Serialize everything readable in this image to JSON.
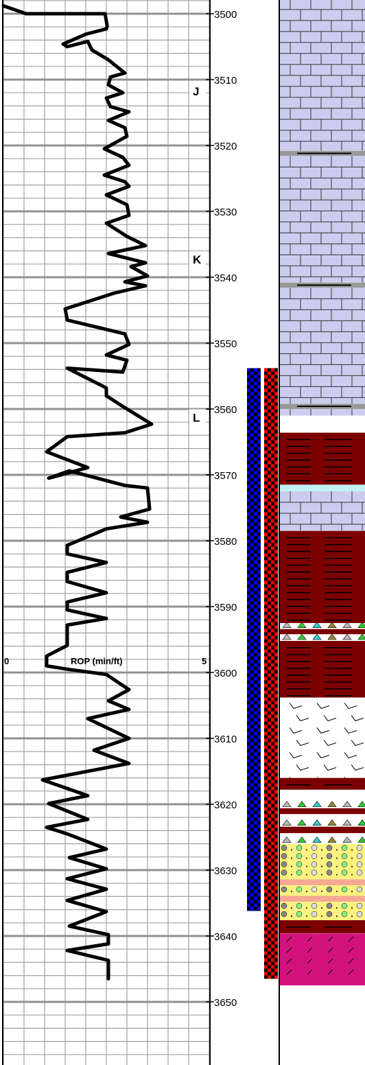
{
  "chart_data": {
    "type": "line",
    "series": [
      {
        "name": "ROP (min/ft)",
        "x": [
          0,
          0.55,
          2.47,
          2.52,
          2.5,
          2.0,
          1.45,
          1.55,
          2.05,
          2.15,
          2.55,
          2.95,
          2.6,
          2.55,
          2.9,
          2.5,
          2.6,
          3.05,
          2.55,
          2.95,
          3.0,
          2.45,
          2.9,
          3.05,
          2.45,
          2.95,
          3.05,
          2.5,
          3.0,
          3.05,
          2.5,
          3.0,
          3.45,
          2.55,
          3.45,
          3.1,
          3.5,
          2.95,
          3.45,
          2.7,
          1.5,
          1.55,
          2.95,
          3.05,
          2.5,
          3.0,
          2.9,
          1.55,
          2.5,
          2.5,
          2.95,
          3.6,
          2.95,
          1.55,
          1.05,
          2.05,
          1.1,
          1.6,
          2.95,
          3.5,
          3.55,
          2.85,
          3.5,
          2.5,
          1.55,
          1.55,
          2.5,
          1.55,
          1.55,
          2.5,
          1.55,
          1.55,
          2.5,
          1.55,
          1.55,
          1.05,
          1.05,
          1.55,
          2.5,
          3.05,
          2.55,
          3.05,
          2.05,
          3.05,
          2.2,
          3.05,
          0.95,
          2.05,
          1.1,
          2.05,
          1.05,
          1.55,
          2.5,
          1.6,
          2.5,
          1.55,
          2.5,
          1.55,
          2.5,
          1.6,
          2.55,
          2.55,
          1.55,
          2.55,
          2.55
        ],
        "y": [
          3498.8,
          3500.0,
          3500.0,
          3501.9,
          3502.3,
          3503.1,
          3504.6,
          3505.0,
          3504.2,
          3505.5,
          3507.0,
          3509.0,
          3509.6,
          3510.8,
          3512.0,
          3512.8,
          3514.1,
          3514.9,
          3516.2,
          3517.3,
          3518.6,
          3520.5,
          3521.8,
          3523.0,
          3524.5,
          3525.5,
          3526.2,
          3527.5,
          3529.0,
          3530.6,
          3531.8,
          3533.8,
          3535.2,
          3536.4,
          3537.8,
          3538.4,
          3539.8,
          3540.7,
          3541.3,
          3542.4,
          3544.8,
          3546.5,
          3548.6,
          3550.2,
          3551.8,
          3552.6,
          3554.4,
          3553.8,
          3556.8,
          3558.0,
          3559.8,
          3562.3,
          3563.6,
          3564.2,
          3566.5,
          3568.9,
          3570.5,
          3569.4,
          3571.6,
          3572.0,
          3575.2,
          3576.4,
          3577.2,
          3578.2,
          3580.7,
          3582.0,
          3583.3,
          3584.8,
          3586.2,
          3587.9,
          3589.3,
          3590.5,
          3591.8,
          3592.8,
          3595.9,
          3597.5,
          3599.0,
          3599.5,
          3600.3,
          3602.6,
          3604.3,
          3605.6,
          3607.0,
          3610.0,
          3611.8,
          3613.8,
          3616.3,
          3618.7,
          3619.9,
          3622.3,
          3623.5,
          3624.5,
          3626.8,
          3628.1,
          3629.8,
          3631.3,
          3632.9,
          3634.6,
          3636.3,
          3638.5,
          3639.8,
          3641.2,
          3642.2,
          3643.7,
          3646.5
        ]
      }
    ],
    "xlabel": "ROP (min/ft)",
    "x_tick_min": "0",
    "x_tick_max": "5",
    "xlim": [
      0,
      5
    ],
    "ylim": [
      3497.7,
      3659
    ],
    "y_ticks": [
      3500,
      3510,
      3520,
      3530,
      3540,
      3550,
      3560,
      3570,
      3580,
      3590,
      3600,
      3610,
      3620,
      3630,
      3640,
      3650
    ],
    "grid": true,
    "zone_markers": [
      {
        "label": "J",
        "depth": 3512
      },
      {
        "label": "K",
        "depth": 3537.5
      },
      {
        "label": "L",
        "depth": 3561.5
      }
    ],
    "bar_tracks": [
      {
        "colors": [
          "#0000ff",
          "#000000"
        ],
        "from_depth": 3553.8,
        "to_depth": 3636.2
      },
      {
        "colors": [
          "#ff0000",
          "#000000"
        ],
        "from_depth": 3553.8,
        "to_depth": 3646.5
      }
    ],
    "lithology": [
      {
        "type": "limestone-gray",
        "from": 3497.7,
        "to": 3520.8
      },
      {
        "type": "shale-line",
        "from": 3520.8,
        "to": 3521.6
      },
      {
        "type": "limestone-gray",
        "from": 3521.6,
        "to": 3540.8
      },
      {
        "type": "shale-line",
        "from": 3540.8,
        "to": 3541.6
      },
      {
        "type": "limestone-gray",
        "from": 3541.6,
        "to": 3559.2
      },
      {
        "type": "shale-line",
        "from": 3559.2,
        "to": 3560.0
      },
      {
        "type": "limestone",
        "from": 3560.0,
        "to": 3561.0
      },
      {
        "type": "shale-maroon",
        "from": 3563.6,
        "to": 3571.5
      },
      {
        "type": "sandstone-cyan",
        "from": 3571.5,
        "to": 3572.5
      },
      {
        "type": "limestone",
        "from": 3572.5,
        "to": 3578.5
      },
      {
        "type": "shale-maroon",
        "from": 3578.5,
        "to": 3592.5
      },
      {
        "type": "chert-triangles",
        "from": 3592.5,
        "to": 3593.4
      },
      {
        "type": "shale-maroon",
        "from": 3593.4,
        "to": 3594.2
      },
      {
        "type": "chert-triangles",
        "from": 3594.2,
        "to": 3595.2
      },
      {
        "type": "shale-maroon",
        "from": 3595.2,
        "to": 3603.8
      },
      {
        "type": "dolomite-white",
        "from": 3603.8,
        "to": 3616.0
      },
      {
        "type": "shale-maroon",
        "from": 3616.0,
        "to": 3617.8
      },
      {
        "type": "chert-triangles",
        "from": 3617.8,
        "to": 3620.6
      },
      {
        "type": "shale-maroon",
        "from": 3620.6,
        "to": 3621.5
      },
      {
        "type": "chert-triangles",
        "from": 3621.5,
        "to": 3623.4
      },
      {
        "type": "shale-maroon",
        "from": 3623.4,
        "to": 3624.4
      },
      {
        "type": "chert-triangles",
        "from": 3624.4,
        "to": 3626.0
      },
      {
        "type": "conglomerate-yellow",
        "from": 3626.0,
        "to": 3631.4
      },
      {
        "type": "pink-band",
        "from": 3631.4,
        "to": 3632.3
      },
      {
        "type": "conglomerate-yellow",
        "from": 3632.3,
        "to": 3633.9
      },
      {
        "type": "pink-band",
        "from": 3633.9,
        "to": 3634.8
      },
      {
        "type": "conglomerate-yellow",
        "from": 3634.8,
        "to": 3637.6
      },
      {
        "type": "shale-maroon",
        "from": 3637.6,
        "to": 3639.6
      },
      {
        "type": "magenta-slash",
        "from": 3639.6,
        "to": 3647.5
      }
    ],
    "colors": {
      "curve": "#000000",
      "grid": "#a0a0a0",
      "grid_major": "#909090",
      "limestone_fill": "#ccccee",
      "shale_fill": "#7b0000",
      "cyan_fill": "#bff3f5",
      "dolomite_fill": "#ffffff",
      "conglomerate_fill": "#fbf281",
      "pink_fill": "#f5a892",
      "magenta_fill": "#d2137e",
      "shale_line_fill": "#999999"
    }
  }
}
